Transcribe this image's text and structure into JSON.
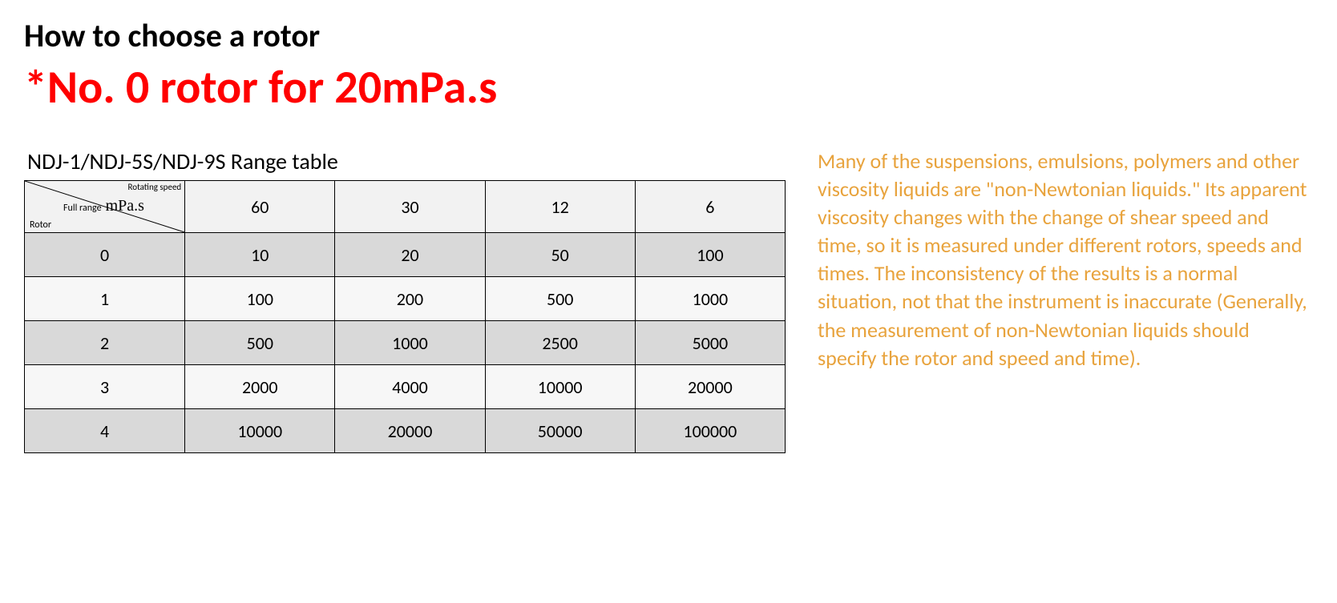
{
  "headings": {
    "h1": "How to choose a rotor",
    "h2": "*No. 0 rotor for 20mPa.s"
  },
  "table": {
    "title_prefix": "NDJ-1/NDJ-5S/NDJ-9S ",
    "title_bold": "Range table",
    "corner": {
      "top": "Rotating speed",
      "full_range": "Full range",
      "unit": "mPa.s",
      "rotor": "Rotor"
    },
    "speeds": [
      "60",
      "30",
      "12",
      "6"
    ],
    "rows": [
      {
        "rotor": "0",
        "values": [
          "10",
          "20",
          "50",
          "100"
        ],
        "band": "dark"
      },
      {
        "rotor": "1",
        "values": [
          "100",
          "200",
          "500",
          "1000"
        ],
        "band": "light"
      },
      {
        "rotor": "2",
        "values": [
          "500",
          "1000",
          "2500",
          "5000"
        ],
        "band": "dark"
      },
      {
        "rotor": "3",
        "values": [
          "2000",
          "4000",
          "10000",
          "20000"
        ],
        "band": "light"
      },
      {
        "rotor": "4",
        "values": [
          "10000",
          "20000",
          "50000",
          "100000"
        ],
        "band": "dark"
      }
    ]
  },
  "note": "Many of the suspensions, emulsions, polymers and other viscosity liquids are \"non-Newtonian liquids.\" Its apparent viscosity changes with the change of shear speed and time, so it is measured under different rotors, speeds and times. The inconsistency of the results is a normal situation, not that the instrument is inaccurate (Generally, the measurement of non-Newtonian liquids should specify the rotor and speed and time).",
  "colors": {
    "heading2": "#ff0000",
    "note": "#e8a33d",
    "band_dark": "#d9d9d9",
    "band_light": "#f7f7f7",
    "header_bg": "#f2f2f2",
    "border": "#000000"
  },
  "fonts": {
    "body": "Calibri",
    "h1_size_pt": 30,
    "h2_size_pt": 44,
    "table_title_pt": 21,
    "cell_pt": 17,
    "note_pt": 20
  }
}
